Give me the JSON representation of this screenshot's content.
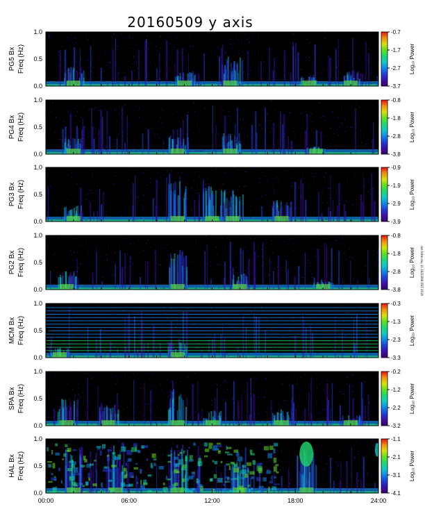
{
  "chart_data": {
    "type": "heatmap",
    "title": "20160509 y axis",
    "x_ticks": [
      "00:00",
      "06:00",
      "12:00",
      "18:00",
      "24:00"
    ],
    "x_range_hours": [
      0,
      24
    ],
    "y_range_hz": [
      0.0,
      1.0
    ],
    "y_ticks": [
      "0.0",
      "0.5",
      "1.0"
    ],
    "colorbar_label": "Log₁₀ Power",
    "colormap": [
      "#3a0070",
      "#3b10a8",
      "#2040d8",
      "#1088e8",
      "#10c8c8",
      "#20d870",
      "#60e020",
      "#d8e010",
      "#f09010",
      "#e81010"
    ],
    "background_color": "#000000",
    "side_stamp": "red total day 11 16/23/08 DST 2016",
    "panels": [
      {
        "station": "PG5 Bx",
        "freq_label": "Freq (Hz)",
        "cbar_ticks": [
          "-0.7",
          "-1.7",
          "-2.7",
          "-3.7"
        ],
        "activity": [
          [
            2,
            0.35
          ],
          [
            10,
            0.3
          ],
          [
            13.3,
            0.55
          ],
          [
            19,
            0.2
          ],
          [
            22,
            0.3
          ]
        ]
      },
      {
        "station": "PG4 Bx",
        "freq_label": "Freq (Hz)",
        "cbar_ticks": [
          "-0.8",
          "-1.8",
          "-2.8",
          "-3.8"
        ],
        "activity": [
          [
            2,
            0.3
          ],
          [
            9.5,
            0.35
          ],
          [
            13.3,
            0.4
          ],
          [
            19.5,
            0.15
          ]
        ]
      },
      {
        "station": "PG3 Bx",
        "freq_label": "Freq (Hz)",
        "cbar_ticks": [
          "-0.9",
          "-1.9",
          "-2.9",
          "-3.9"
        ],
        "activity": [
          [
            2,
            0.3
          ],
          [
            9.5,
            0.8
          ],
          [
            12,
            0.7
          ],
          [
            13.5,
            0.6
          ],
          [
            17,
            0.4
          ]
        ]
      },
      {
        "station": "PG2 Bx",
        "freq_label": "Freq (Hz)",
        "cbar_ticks": [
          "-0.8",
          "-1.8",
          "-2.8",
          "-3.8"
        ],
        "activity": [
          [
            1.5,
            0.35
          ],
          [
            9.5,
            0.75
          ],
          [
            14,
            0.3
          ],
          [
            20,
            0.2
          ]
        ]
      },
      {
        "station": "MCM Bx",
        "freq_label": "Freq (Hz)",
        "cbar_ticks": [
          "-0.3",
          "-1.3",
          "-2.3",
          "-3.3"
        ],
        "activity": [
          [
            1,
            0.2
          ],
          [
            9.5,
            0.3
          ]
        ]
      },
      {
        "station": "SPA Bx",
        "freq_label": "Freq (Hz)",
        "cbar_ticks": [
          "-0.2",
          "-1.2",
          "-2.2",
          "-3.2"
        ],
        "activity": [
          [
            1.5,
            0.5
          ],
          [
            4.5,
            0.4
          ],
          [
            9.5,
            0.7
          ],
          [
            12,
            0.3
          ],
          [
            17,
            0.3
          ],
          [
            22,
            0.2
          ]
        ]
      },
      {
        "station": "HAL Bx",
        "freq_label": "Freq (Hz)",
        "cbar_ticks": [
          "-1.1",
          "-2.1",
          "-3.1",
          "-4.1"
        ],
        "activity": [
          [
            2,
            0.9
          ],
          [
            5,
            0.9
          ],
          [
            9.5,
            0.85
          ],
          [
            14,
            0.6
          ],
          [
            18.8,
            0.8
          ]
        ]
      }
    ]
  }
}
